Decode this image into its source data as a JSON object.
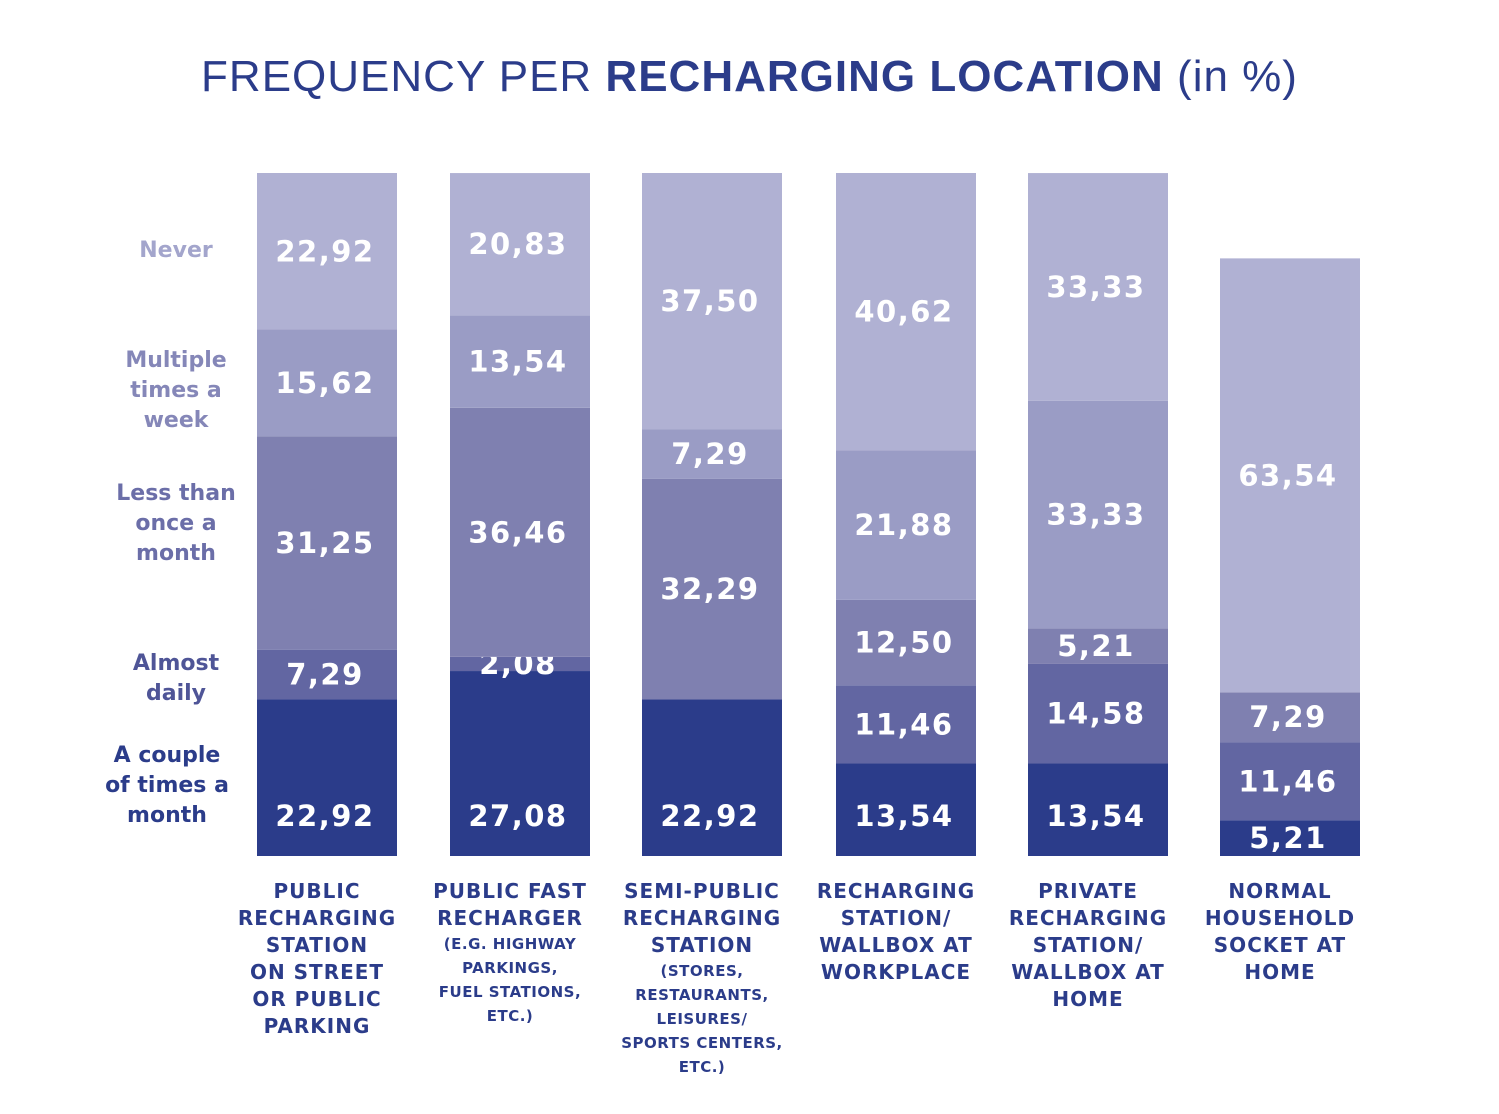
{
  "chart_data": {
    "type": "bar",
    "stacked": true,
    "title": {
      "prefix": "FREQUENCY PER ",
      "bold": "RECHARGING LOCATION",
      "suffix": " (in %)"
    },
    "ylim": [
      0,
      100
    ],
    "grid": false,
    "legend": "left",
    "categories": [
      {
        "main": [
          "PUBLIC",
          "RECHARGING",
          "STATION",
          "ON STREET",
          "OR PUBLIC",
          "PARKING"
        ],
        "sub": []
      },
      {
        "main": [
          "PUBLIC FAST",
          "RECHARGER"
        ],
        "sub": [
          "(E.G. HIGHWAY",
          "PARKINGS,",
          "FUEL STATIONS,",
          "ETC.)"
        ]
      },
      {
        "main": [
          "SEMI-PUBLIC",
          "RECHARGING",
          "STATION"
        ],
        "sub": [
          "(STORES,",
          "RESTAURANTS,",
          "LEISURES/",
          "SPORTS CENTERS,",
          "ETC.)"
        ]
      },
      {
        "main": [
          "RECHARGING",
          "STATION/",
          "WALLBOX AT",
          "WORKPLACE"
        ],
        "sub": []
      },
      {
        "main": [
          "PRIVATE",
          "RECHARGING",
          "STATION/",
          "WALLBOX AT",
          "HOME"
        ],
        "sub": []
      },
      {
        "main": [
          "NORMAL",
          "HOUSEHOLD",
          "SOCKET AT",
          "HOME"
        ],
        "sub": []
      }
    ],
    "series": [
      {
        "name": "A couple of times a month",
        "name_lines": [
          "A couple",
          "of times a",
          "month"
        ],
        "color": "#2b3c8a",
        "label_color": "#2b3c8a",
        "values": [
          22.92,
          27.08,
          22.92,
          13.54,
          13.54,
          5.21
        ],
        "labels": [
          "22,92",
          "27,08",
          "22,92",
          "13,54",
          "13,54",
          "5,21"
        ]
      },
      {
        "name": "Almost daily",
        "name_lines": [
          "Almost",
          "daily"
        ],
        "color": "#6266a2",
        "label_color": "#4f5597",
        "values": [
          7.29,
          2.08,
          0,
          11.46,
          14.58,
          11.46
        ],
        "labels": [
          "7,29",
          "2,08",
          "",
          "11,46",
          "14,58",
          "11,46"
        ]
      },
      {
        "name": "Less than once a month",
        "name_lines": [
          "Less than",
          "once a",
          "month"
        ],
        "color": "#7f80b0",
        "label_color": "#6b6ea8",
        "values": [
          31.25,
          36.46,
          32.29,
          12.5,
          5.21,
          7.29
        ],
        "labels": [
          "31,25",
          "36,46",
          "32,29",
          "12,50",
          "5,21",
          "7,29"
        ]
      },
      {
        "name": "Multiple times a week",
        "name_lines": [
          "Multiple",
          "times a",
          "week"
        ],
        "color": "#9a9cc5",
        "label_color": "#8587b8",
        "values": [
          15.62,
          13.54,
          7.29,
          21.88,
          33.33,
          0
        ],
        "labels": [
          "15,62",
          "13,54",
          "7,29",
          "21,88",
          "33,33",
          ""
        ]
      },
      {
        "name": "Never",
        "name_lines": [
          "Never"
        ],
        "color": "#b0b1d3",
        "label_color": "#a3a5cc",
        "values": [
          22.92,
          20.83,
          37.5,
          40.62,
          33.33,
          63.54
        ],
        "labels": [
          "22,92",
          "20,83",
          "37,50",
          "40,62",
          "33,33",
          "63,54"
        ]
      }
    ]
  }
}
